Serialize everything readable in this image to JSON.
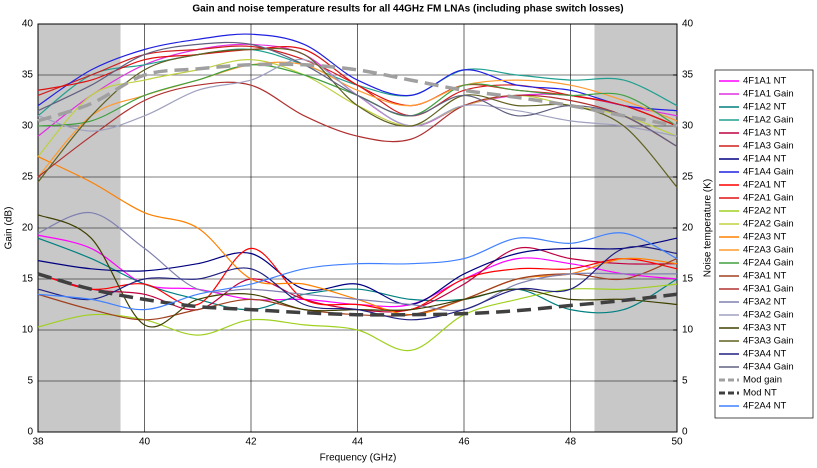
{
  "chart_data": {
    "type": "line",
    "title": "Gain and noise temperature results for all 44GHz FM LNAs (including phase switch losses)",
    "x_label": "Frequency (GHz)",
    "y_label": "Gain (dB)",
    "y2_label": "Noise temperature (K)",
    "x": [
      38,
      39,
      40,
      41,
      42,
      43,
      44,
      45,
      46,
      47,
      48,
      49,
      50
    ],
    "xlim": [
      38,
      50
    ],
    "xticks": [
      38,
      40,
      42,
      44,
      46,
      48,
      50
    ],
    "ylim": [
      0,
      40
    ],
    "yticks": [
      0,
      5,
      10,
      15,
      20,
      25,
      30,
      35,
      40
    ],
    "y2lim": [
      0,
      40
    ],
    "y2ticks": [
      0,
      5,
      10,
      15,
      20,
      25,
      30,
      35,
      40
    ],
    "grid": true,
    "legend": "right",
    "shaded_ranges": [
      [
        38,
        39.55
      ],
      [
        48.45,
        50
      ]
    ],
    "series": [
      {
        "name": "4F1A1 NT",
        "color": "#ff00ff",
        "axis": "y2",
        "values": [
          19.3,
          18,
          14.5,
          14,
          13,
          13,
          12.5,
          12.5,
          15,
          17,
          16.5,
          15.5,
          15
        ]
      },
      {
        "name": "4F1A1 Gain",
        "color": "#e030e0",
        "values": [
          29,
          33,
          36,
          37.5,
          38,
          37,
          33,
          30,
          32,
          33,
          33,
          32,
          31
        ]
      },
      {
        "name": "4F1A2 NT",
        "color": "#008080",
        "axis": "y2",
        "values": [
          19,
          17,
          14.5,
          13,
          12,
          13.5,
          14,
          13,
          13,
          14,
          12,
          12,
          15
        ]
      },
      {
        "name": "4F1A2 Gain",
        "color": "#20a090",
        "values": [
          31,
          35,
          36,
          37,
          37.5,
          36,
          34,
          33,
          35.5,
          35,
          34.5,
          34.5,
          32
        ]
      },
      {
        "name": "4F1A3 NT",
        "color": "#c00040",
        "axis": "y2",
        "values": [
          15.5,
          14,
          13.5,
          12,
          15,
          13,
          12,
          12,
          14.5,
          18,
          17,
          16.5,
          16.5
        ]
      },
      {
        "name": "4F1A3 Gain",
        "color": "#d02020",
        "values": [
          33,
          35,
          37,
          37.5,
          37.8,
          36.5,
          34,
          31,
          33.5,
          34,
          33,
          32,
          30
        ]
      },
      {
        "name": "4F1A4 NT",
        "color": "#000080",
        "axis": "y2",
        "values": [
          16.8,
          16,
          15.8,
          16.5,
          17.5,
          14,
          14.5,
          12.5,
          15.5,
          17.5,
          18,
          18,
          19
        ]
      },
      {
        "name": "4F1A4 Gain",
        "color": "#2020e0",
        "values": [
          32,
          35.5,
          37.5,
          38.5,
          39,
          38,
          34.5,
          33,
          35.5,
          34,
          33.5,
          32,
          31.5
        ]
      },
      {
        "name": "4F2A1 NT",
        "color": "#ff0000",
        "axis": "y2",
        "values": [
          15.5,
          14,
          14.5,
          12.5,
          18,
          13,
          12.5,
          12,
          15,
          16,
          16,
          17,
          16
        ]
      },
      {
        "name": "4F2A1 Gain",
        "color": "#e01010",
        "values": [
          33.5,
          34.5,
          36.5,
          37,
          37.5,
          37.5,
          34,
          32,
          34,
          33.5,
          33,
          32,
          30
        ]
      },
      {
        "name": "4F2A2 NT",
        "color": "#a0d020",
        "axis": "y2",
        "values": [
          10.3,
          11.5,
          11,
          9.5,
          11,
          10.5,
          10,
          8,
          11.5,
          13,
          14,
          14,
          14.5
        ]
      },
      {
        "name": "4F2A2 Gain",
        "color": "#c0d040",
        "values": [
          27,
          33,
          34.5,
          35.5,
          36.5,
          35,
          32,
          30,
          32,
          33,
          32,
          31,
          29
        ]
      },
      {
        "name": "4F2A3 NT",
        "color": "#ff8000",
        "axis": "y2",
        "values": [
          27,
          24.5,
          21.5,
          20,
          15,
          14.5,
          13,
          11.5,
          13,
          15,
          15.5,
          17,
          16.5
        ]
      },
      {
        "name": "4F2A3 Gain",
        "color": "#ff9a30",
        "values": [
          25,
          31,
          33,
          34.5,
          36,
          36,
          33.5,
          32,
          34,
          34.5,
          34,
          32.5,
          30.5
        ]
      },
      {
        "name": "4F2A4 Gain",
        "color": "#40a040",
        "values": [
          30,
          30.5,
          33,
          34.5,
          36,
          35,
          33,
          31,
          34,
          33.5,
          33,
          33,
          30
        ]
      },
      {
        "name": "4F3A1 NT",
        "color": "#a04020",
        "axis": "y2",
        "values": [
          13.5,
          12,
          11,
          12,
          13,
          12,
          11.5,
          11.5,
          13,
          15,
          15.5,
          15,
          17
        ]
      },
      {
        "name": "4F3A1 Gain",
        "color": "#b03030",
        "values": [
          25,
          29,
          32.5,
          34,
          34,
          31,
          29,
          28.7,
          32,
          33,
          32.5,
          31,
          28
        ]
      },
      {
        "name": "4F3A2 NT",
        "color": "#8080b0",
        "axis": "y2",
        "values": [
          19.5,
          21.5,
          18,
          14,
          14,
          13.5,
          13,
          12.5,
          12,
          14.5,
          15.5,
          15.5,
          15.5
        ]
      },
      {
        "name": "4F3A2 Gain",
        "color": "#a0a0c0",
        "values": [
          31,
          29.5,
          31,
          33.5,
          34.5,
          36.5,
          33,
          30,
          32,
          31.5,
          30.5,
          30,
          29
        ]
      },
      {
        "name": "4F3A3 NT",
        "color": "#404000",
        "axis": "y2",
        "values": [
          21.3,
          19,
          10.5,
          13,
          13.5,
          12,
          12,
          12,
          13,
          14,
          13,
          13,
          12.5
        ]
      },
      {
        "name": "4F3A3 Gain",
        "color": "#606020",
        "values": [
          24.5,
          31,
          35.5,
          37,
          37.5,
          37,
          32,
          30,
          33,
          32,
          32,
          30,
          24
        ]
      },
      {
        "name": "4F3A4 NT",
        "color": "#202080",
        "axis": "y2",
        "values": [
          14,
          13,
          15,
          15,
          16,
          12.5,
          12,
          11,
          12,
          14,
          14,
          18,
          17.5
        ]
      },
      {
        "name": "4F3A4 Gain",
        "color": "#606080",
        "values": [
          31.5,
          34,
          37,
          38,
          38,
          36,
          33,
          31,
          33,
          31,
          32,
          31,
          28
        ]
      },
      {
        "name": "Mod gain",
        "color": "#a0a0a0",
        "dashed": true,
        "values": [
          30.5,
          32.2,
          35,
          35.6,
          36,
          36,
          35.5,
          34.5,
          33.5,
          32.8,
          32,
          31,
          30
        ]
      },
      {
        "name": "Mod NT",
        "color": "#404040",
        "dashed": true,
        "axis": "y2",
        "values": [
          15.5,
          14,
          13,
          12.3,
          12,
          11.7,
          11.5,
          11.5,
          11.6,
          11.9,
          12.4,
          12.9,
          13.5
        ]
      },
      {
        "name": "4F2A4 NT",
        "color": "#4080ff",
        "axis": "y2",
        "values": [
          13.5,
          13,
          12,
          13.5,
          14.5,
          16,
          16.5,
          16.5,
          17,
          19,
          18.5,
          19.5,
          17
        ]
      }
    ]
  }
}
